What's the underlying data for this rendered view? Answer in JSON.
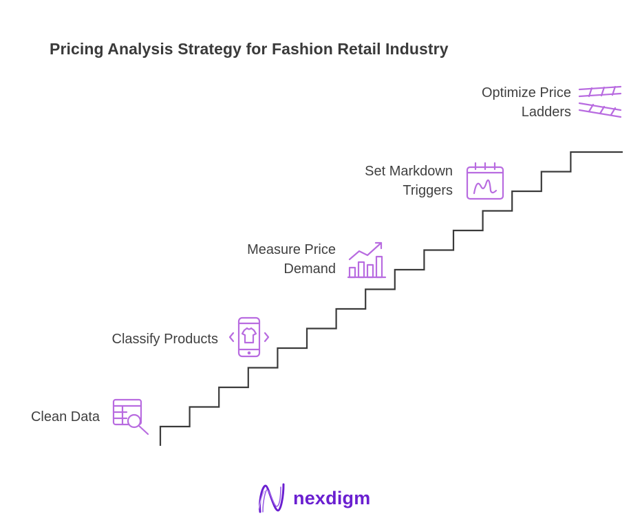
{
  "title": "Pricing Analysis Strategy for Fashion Retail Industry",
  "steps": [
    {
      "lines": [
        "Clean Data"
      ],
      "icon": "table-search-icon"
    },
    {
      "lines": [
        "Classify Products"
      ],
      "icon": "phone-shirt-icon"
    },
    {
      "lines": [
        "Measure Price",
        "Demand"
      ],
      "icon": "bar-chart-trend-icon"
    },
    {
      "lines": [
        "Set Markdown",
        "Triggers"
      ],
      "icon": "calendar-signature-icon"
    },
    {
      "lines": [
        "Optimize Price",
        "Ladders"
      ],
      "icon": "ladder-icon"
    }
  ],
  "brand": {
    "name": "nexdigm",
    "icon": "nexdigm-logo-icon"
  },
  "colors": {
    "accent": "#b86be0",
    "line": "#3a3a3a",
    "brand": "#6a1fd0",
    "text": "#3f3f3f"
  }
}
